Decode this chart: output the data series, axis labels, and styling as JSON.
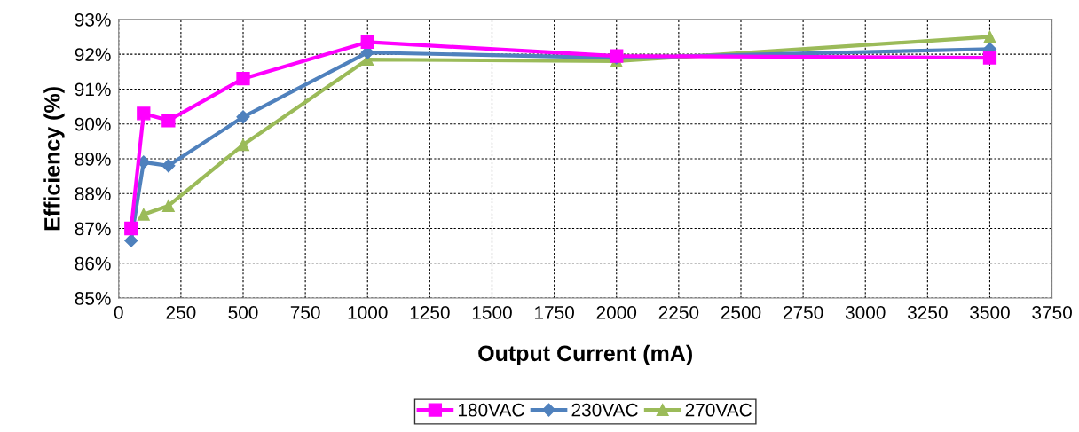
{
  "chart_data": {
    "type": "line",
    "xlabel": "Output Current (mA)",
    "ylabel": "Efficiency (%)",
    "x": [
      50,
      100,
      200,
      500,
      1000,
      2000,
      3500
    ],
    "series": [
      {
        "name": "180VAC",
        "color": "#ff00ff",
        "marker": "square",
        "values": [
          87.0,
          90.3,
          90.1,
          91.3,
          92.35,
          91.95,
          91.9
        ]
      },
      {
        "name": "230VAC",
        "color": "#4f81bd",
        "marker": "diamond",
        "values": [
          86.65,
          88.9,
          88.8,
          90.2,
          92.05,
          91.9,
          92.15
        ]
      },
      {
        "name": "270VAC",
        "color": "#9bbb59",
        "marker": "triangle",
        "values": [
          null,
          87.4,
          87.65,
          89.4,
          91.85,
          91.8,
          92.5
        ]
      }
    ],
    "xlim": [
      0,
      3750
    ],
    "xticks": [
      0,
      250,
      500,
      750,
      1000,
      1250,
      1500,
      1750,
      2000,
      2250,
      2500,
      2750,
      3000,
      3250,
      3500,
      3750
    ],
    "ylim": [
      85,
      93
    ],
    "yticks": [
      {
        "value": 85,
        "label": "85%"
      },
      {
        "value": 86,
        "label": "86%"
      },
      {
        "value": 87,
        "label": "87%"
      },
      {
        "value": 88,
        "label": "88%"
      },
      {
        "value": 89,
        "label": "89%"
      },
      {
        "value": 90,
        "label": "90%"
      },
      {
        "value": 91,
        "label": "91%"
      },
      {
        "value": 92,
        "label": "92%"
      },
      {
        "value": 93,
        "label": "93%"
      }
    ],
    "grid": true,
    "legend": "bottom",
    "line_style": "solid"
  }
}
